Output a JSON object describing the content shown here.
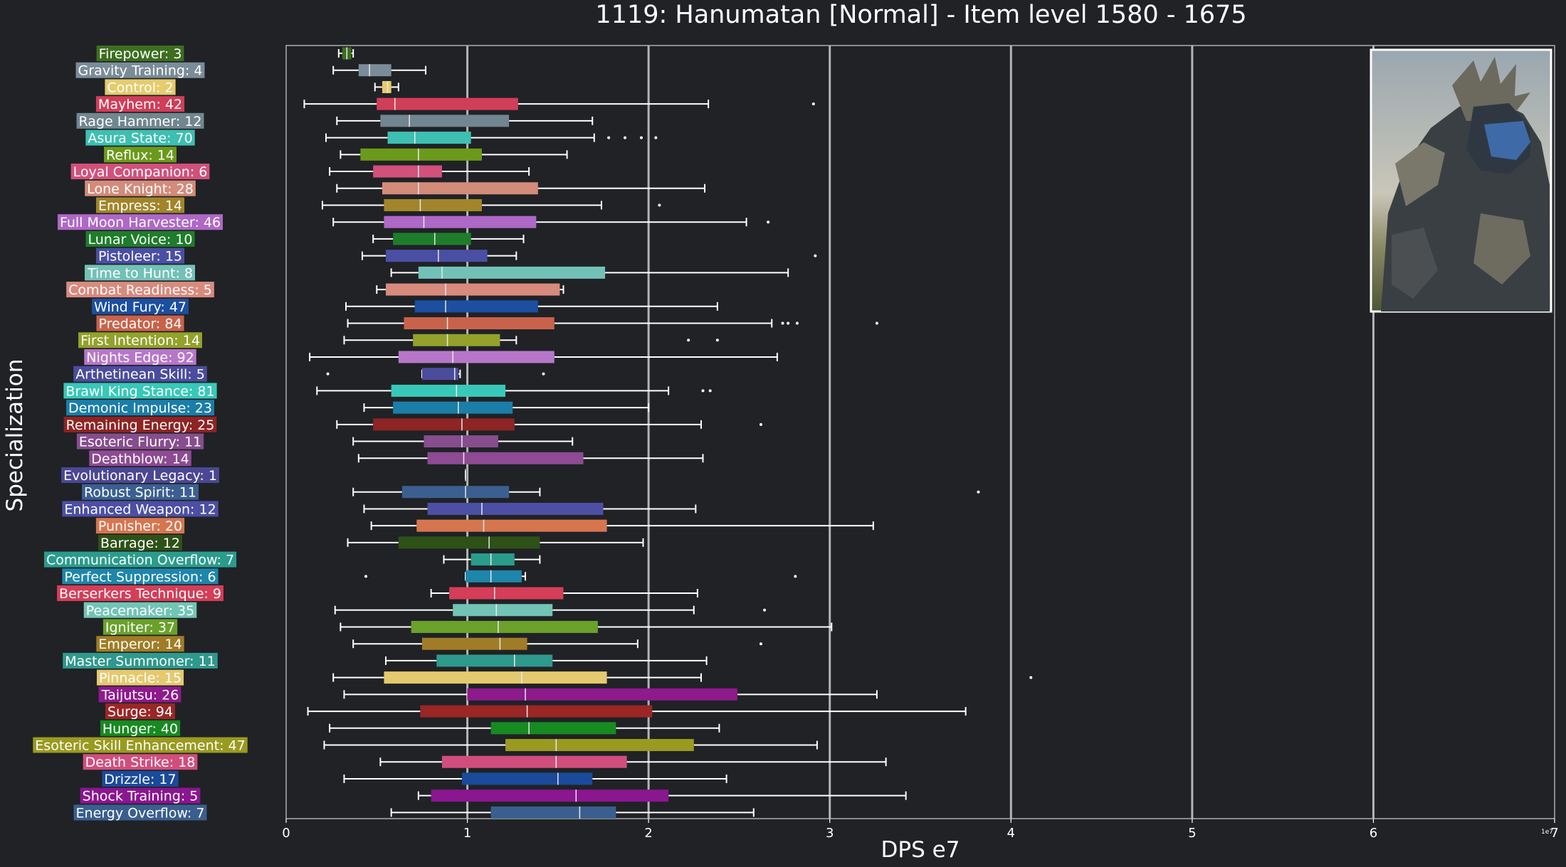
{
  "chart_data": {
    "type": "boxplot",
    "title": "1119: Hanumatan [Normal] - Item level 1580 - 1675",
    "xlabel": "DPS e7",
    "ylabel": "Specialization",
    "x_offset_text": "1e7",
    "xlim": [
      0,
      7
    ],
    "xticks": [
      0,
      1,
      2,
      3,
      4,
      5,
      6,
      7
    ],
    "grid": "vertical",
    "orientation": "horizontal",
    "categories": [
      {
        "label": "Firepower: 3",
        "color": "#3c6e1f",
        "min": 0.29,
        "q1": 0.31,
        "median": 0.335,
        "q3": 0.36,
        "max": 0.37,
        "outliers": []
      },
      {
        "label": "Gravity Training: 4",
        "color": "#7b8c99",
        "min": 0.26,
        "q1": 0.4,
        "median": 0.46,
        "q3": 0.58,
        "max": 0.77,
        "outliers": []
      },
      {
        "label": "Control: 2",
        "color": "#e5cc6c",
        "min": 0.49,
        "q1": 0.53,
        "median": 0.56,
        "q3": 0.58,
        "max": 0.62,
        "outliers": []
      },
      {
        "label": "Mayhem: 42",
        "color": "#d03e58",
        "min": 0.1,
        "q1": 0.5,
        "median": 0.6,
        "q3": 1.28,
        "max": 2.33,
        "outliers": [
          2.91
        ]
      },
      {
        "label": "Rage Hammer: 12",
        "color": "#71868f",
        "min": 0.28,
        "q1": 0.52,
        "median": 0.68,
        "q3": 1.23,
        "max": 1.69,
        "outliers": []
      },
      {
        "label": "Asura State: 70",
        "color": "#3dbfb1",
        "min": 0.22,
        "q1": 0.56,
        "median": 0.71,
        "q3": 1.02,
        "max": 1.7,
        "outliers": [
          1.78,
          1.87,
          1.96,
          2.04
        ]
      },
      {
        "label": "Reflux: 14",
        "color": "#6b9a1b",
        "min": 0.3,
        "q1": 0.41,
        "median": 0.73,
        "q3": 1.08,
        "max": 1.55,
        "outliers": []
      },
      {
        "label": "Loyal Companion: 6",
        "color": "#d1517a",
        "min": 0.24,
        "q1": 0.48,
        "median": 0.73,
        "q3": 0.86,
        "max": 1.34,
        "outliers": []
      },
      {
        "label": "Lone Knight: 28",
        "color": "#d38b7a",
        "min": 0.28,
        "q1": 0.53,
        "median": 0.73,
        "q3": 1.39,
        "max": 2.31,
        "outliers": []
      },
      {
        "label": "Empress: 14",
        "color": "#a2852a",
        "min": 0.2,
        "q1": 0.54,
        "median": 0.74,
        "q3": 1.08,
        "max": 1.74,
        "outliers": [
          2.06
        ]
      },
      {
        "label": "Full Moon Harvester: 46",
        "color": "#ae68c6",
        "min": 0.26,
        "q1": 0.54,
        "median": 0.76,
        "q3": 1.38,
        "max": 2.54,
        "outliers": [
          2.66
        ]
      },
      {
        "label": "Lunar Voice: 10",
        "color": "#1e7d2a",
        "min": 0.48,
        "q1": 0.59,
        "median": 0.82,
        "q3": 1.02,
        "max": 1.31,
        "outliers": []
      },
      {
        "label": "Pistoleer: 15",
        "color": "#4a4fa4",
        "min": 0.42,
        "q1": 0.55,
        "median": 0.84,
        "q3": 1.11,
        "max": 1.27,
        "outliers": [
          2.92
        ]
      },
      {
        "label": "Time to Hunt: 8",
        "color": "#72c1b7",
        "min": 0.58,
        "q1": 0.73,
        "median": 0.86,
        "q3": 1.76,
        "max": 2.77,
        "outliers": []
      },
      {
        "label": "Combat Readiness: 5",
        "color": "#d88a7d",
        "min": 0.5,
        "q1": 0.55,
        "median": 0.88,
        "q3": 1.51,
        "max": 1.53,
        "outliers": []
      },
      {
        "label": "Wind Fury: 47",
        "color": "#1c4fa0",
        "min": 0.33,
        "q1": 0.71,
        "median": 0.88,
        "q3": 1.39,
        "max": 2.38,
        "outliers": []
      },
      {
        "label": "Predator: 84",
        "color": "#c9624b",
        "min": 0.34,
        "q1": 0.65,
        "median": 0.89,
        "q3": 1.48,
        "max": 2.68,
        "outliers": [
          2.74,
          2.77,
          2.82,
          3.26
        ]
      },
      {
        "label": "First Intention: 14",
        "color": "#93a22a",
        "min": 0.32,
        "q1": 0.7,
        "median": 0.89,
        "q3": 1.18,
        "max": 1.27,
        "outliers": [
          2.22,
          2.38
        ]
      },
      {
        "label": "Nights Edge: 92",
        "color": "#b777c9",
        "min": 0.13,
        "q1": 0.62,
        "median": 0.92,
        "q3": 1.48,
        "max": 2.71,
        "outliers": []
      },
      {
        "label": "Arthetinean Skill: 5",
        "color": "#4b4c9c",
        "min": 0.75,
        "q1": 0.75,
        "median": 0.93,
        "q3": 0.95,
        "max": 0.96,
        "outliers": [
          0.23,
          1.42
        ]
      },
      {
        "label": "Brawl King Stance: 81",
        "color": "#38c8b9",
        "min": 0.17,
        "q1": 0.58,
        "median": 0.94,
        "q3": 1.21,
        "max": 2.11,
        "outliers": [
          2.3,
          2.34
        ]
      },
      {
        "label": "Demonic Impulse: 23",
        "color": "#1b7ea8",
        "min": 0.43,
        "q1": 0.59,
        "median": 0.95,
        "q3": 1.25,
        "max": 2.0,
        "outliers": []
      },
      {
        "label": "Remaining Energy: 25",
        "color": "#8e2424",
        "min": 0.28,
        "q1": 0.48,
        "median": 0.97,
        "q3": 1.26,
        "max": 2.29,
        "outliers": [
          2.62
        ]
      },
      {
        "label": "Esoteric Flurry: 11",
        "color": "#874d8e",
        "min": 0.37,
        "q1": 0.76,
        "median": 0.97,
        "q3": 1.17,
        "max": 1.58,
        "outliers": []
      },
      {
        "label": "Deathblow: 14",
        "color": "#8e4a92",
        "min": 0.4,
        "q1": 0.78,
        "median": 0.98,
        "q3": 1.64,
        "max": 2.3,
        "outliers": []
      },
      {
        "label": "Evolutionary Legacy: 1",
        "color": "#4b4793",
        "min": 0.99,
        "q1": 0.99,
        "median": 0.99,
        "q3": 0.99,
        "max": 0.99,
        "outliers": []
      },
      {
        "label": "Robust Spirit: 11",
        "color": "#3b5f90",
        "min": 0.37,
        "q1": 0.64,
        "median": 0.99,
        "q3": 1.23,
        "max": 1.4,
        "outliers": [
          3.82
        ]
      },
      {
        "label": "Enhanced Weapon: 12",
        "color": "#4c4fa4",
        "min": 0.43,
        "q1": 0.78,
        "median": 1.08,
        "q3": 1.75,
        "max": 2.26,
        "outliers": []
      },
      {
        "label": "Punisher: 20",
        "color": "#d6764f",
        "min": 0.47,
        "q1": 0.72,
        "median": 1.09,
        "q3": 1.77,
        "max": 3.24,
        "outliers": []
      },
      {
        "label": "Barrage: 12",
        "color": "#2e5117",
        "min": 0.34,
        "q1": 0.62,
        "median": 1.12,
        "q3": 1.4,
        "max": 1.97,
        "outliers": []
      },
      {
        "label": "Communication Overflow: 7",
        "color": "#2a9c8c",
        "min": 0.87,
        "q1": 1.02,
        "median": 1.13,
        "q3": 1.26,
        "max": 1.4,
        "outliers": []
      },
      {
        "label": "Perfect Suppression: 6",
        "color": "#1e86ab",
        "min": 0.99,
        "q1": 0.99,
        "median": 1.13,
        "q3": 1.3,
        "max": 1.32,
        "outliers": [
          0.44,
          2.81
        ]
      },
      {
        "label": "Berserkers Technique: 9",
        "color": "#d53d58",
        "min": 0.8,
        "q1": 0.9,
        "median": 1.15,
        "q3": 1.53,
        "max": 2.27,
        "outliers": []
      },
      {
        "label": "Peacemaker: 35",
        "color": "#72c4b5",
        "min": 0.27,
        "q1": 0.92,
        "median": 1.16,
        "q3": 1.47,
        "max": 2.25,
        "outliers": [
          2.64
        ]
      },
      {
        "label": "Igniter: 37",
        "color": "#6aa12a",
        "min": 0.3,
        "q1": 0.69,
        "median": 1.17,
        "q3": 1.72,
        "max": 3.01,
        "outliers": []
      },
      {
        "label": "Emperor: 14",
        "color": "#a07c26",
        "min": 0.37,
        "q1": 0.75,
        "median": 1.18,
        "q3": 1.33,
        "max": 1.94,
        "outliers": [
          2.62
        ]
      },
      {
        "label": "Master Summoner: 11",
        "color": "#2e998c",
        "min": 0.55,
        "q1": 0.83,
        "median": 1.26,
        "q3": 1.47,
        "max": 2.32,
        "outliers": []
      },
      {
        "label": "Pinnacle: 15",
        "color": "#e5c96e",
        "min": 0.26,
        "q1": 0.54,
        "median": 1.3,
        "q3": 1.77,
        "max": 2.29,
        "outliers": [
          4.11
        ]
      },
      {
        "label": "Taijutsu: 26",
        "color": "#8e1a8c",
        "min": 0.32,
        "q1": 1.0,
        "median": 1.32,
        "q3": 2.49,
        "max": 3.26,
        "outliers": []
      },
      {
        "label": "Surge: 94",
        "color": "#9a2626",
        "min": 0.12,
        "q1": 0.74,
        "median": 1.33,
        "q3": 2.02,
        "max": 3.75,
        "outliers": []
      },
      {
        "label": "Hunger: 40",
        "color": "#188a22",
        "min": 0.24,
        "q1": 1.13,
        "median": 1.34,
        "q3": 1.82,
        "max": 2.39,
        "outliers": []
      },
      {
        "label": "Esoteric Skill Enhancement: 47",
        "color": "#9a9a20",
        "min": 0.21,
        "q1": 1.21,
        "median": 1.49,
        "q3": 2.25,
        "max": 2.93,
        "outliers": []
      },
      {
        "label": "Death Strike: 18",
        "color": "#d14e7c",
        "min": 0.52,
        "q1": 0.86,
        "median": 1.49,
        "q3": 1.88,
        "max": 3.31,
        "outliers": []
      },
      {
        "label": "Drizzle: 17",
        "color": "#1a4a9a",
        "min": 0.32,
        "q1": 0.97,
        "median": 1.5,
        "q3": 1.69,
        "max": 2.43,
        "outliers": []
      },
      {
        "label": "Shock Training: 5",
        "color": "#8a1690",
        "min": 0.73,
        "q1": 0.8,
        "median": 1.6,
        "q3": 2.11,
        "max": 3.42,
        "outliers": []
      },
      {
        "label": "Energy Overflow: 7",
        "color": "#3a5f8f",
        "min": 0.58,
        "q1": 1.13,
        "median": 1.62,
        "q3": 1.82,
        "max": 2.58,
        "outliers": []
      }
    ]
  }
}
